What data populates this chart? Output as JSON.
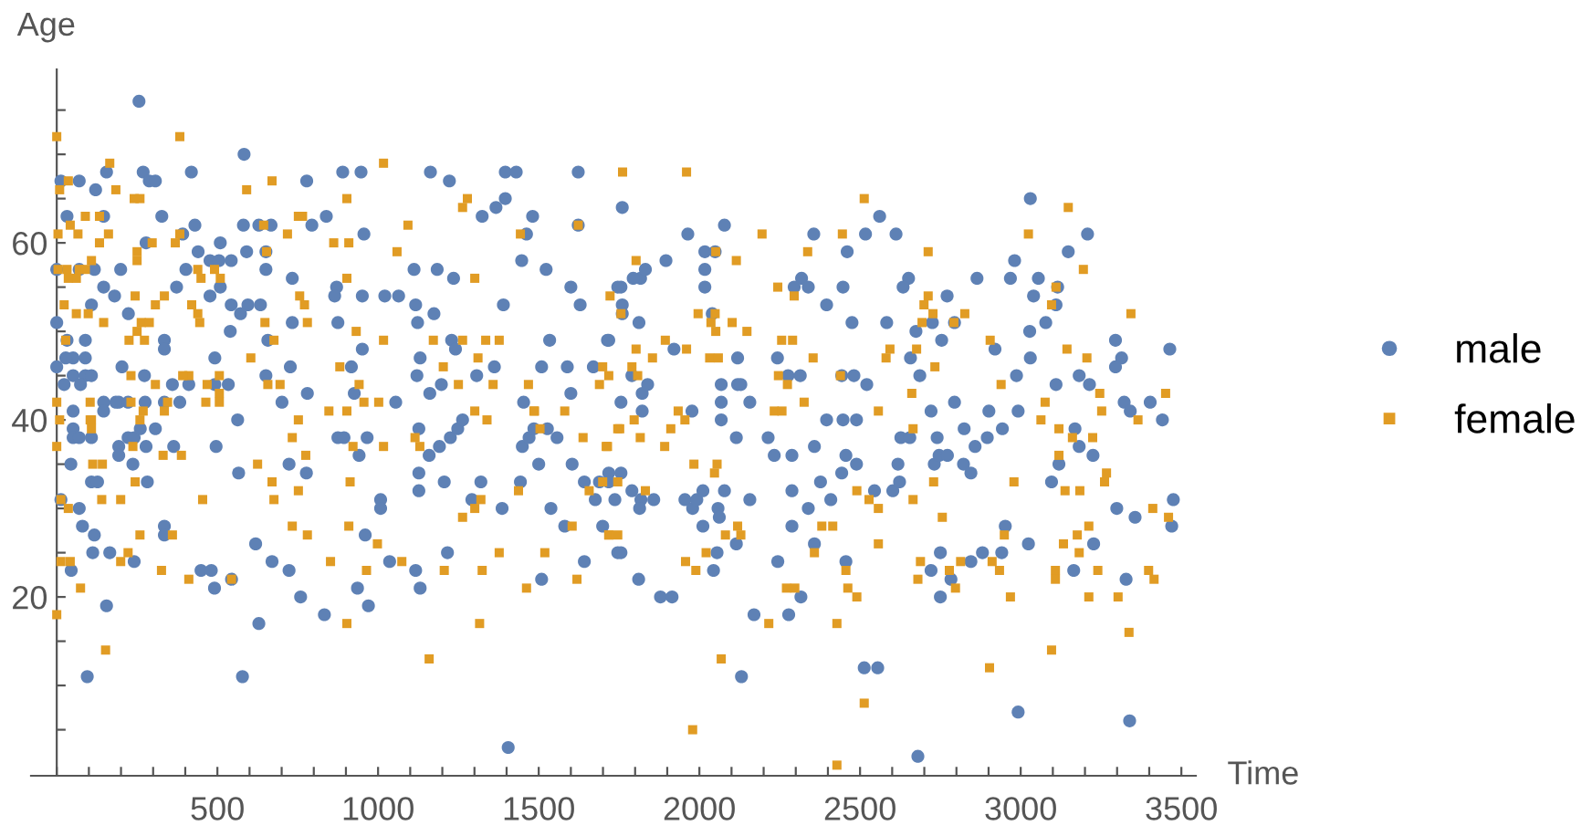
{
  "chart_data": {
    "type": "scatter",
    "xlabel": "Time",
    "ylabel": "Age",
    "legend": "right",
    "grid": false,
    "xlim": [
      -80,
      3545
    ],
    "ylim": [
      -0.2,
      79.6
    ],
    "xticks": [
      {
        "value": 0,
        "label": null
      },
      {
        "value": 100,
        "label": null
      },
      {
        "value": 200,
        "label": null
      },
      {
        "value": 300,
        "label": null
      },
      {
        "value": 400,
        "label": null
      },
      500,
      {
        "value": 600,
        "label": null
      },
      {
        "value": 700,
        "label": null
      },
      {
        "value": 800,
        "label": null
      },
      {
        "value": 900,
        "label": null
      },
      1000,
      {
        "value": 1100,
        "label": null
      },
      {
        "value": 1200,
        "label": null
      },
      {
        "value": 1300,
        "label": null
      },
      {
        "value": 1400,
        "label": null
      },
      1500,
      {
        "value": 1600,
        "label": null
      },
      {
        "value": 1700,
        "label": null
      },
      {
        "value": 1800,
        "label": null
      },
      {
        "value": 1900,
        "label": null
      },
      2000,
      {
        "value": 2100,
        "label": null
      },
      {
        "value": 2200,
        "label": null
      },
      {
        "value": 2300,
        "label": null
      },
      {
        "value": 2400,
        "label": null
      },
      2500,
      {
        "value": 2600,
        "label": null
      },
      {
        "value": 2700,
        "label": null
      },
      {
        "value": 2800,
        "label": null
      },
      {
        "value": 2900,
        "label": null
      },
      3000,
      {
        "value": 3100,
        "label": null
      },
      {
        "value": 3200,
        "label": null
      },
      {
        "value": 3300,
        "label": null
      },
      {
        "value": 3400,
        "label": null
      },
      3500
    ],
    "yticks": [
      {
        "value": 5,
        "label": null
      },
      {
        "value": 10,
        "label": null
      },
      {
        "value": 15,
        "label": null
      },
      20,
      {
        "value": 25,
        "label": null
      },
      {
        "value": 30,
        "label": null
      },
      {
        "value": 35,
        "label": null
      },
      40,
      {
        "value": 45,
        "label": null
      },
      {
        "value": 50,
        "label": null
      },
      {
        "value": 55,
        "label": null
      },
      60,
      {
        "value": 65,
        "label": null
      },
      {
        "value": 70,
        "label": null
      },
      {
        "value": 75,
        "label": null
      }
    ],
    "series": [
      {
        "name": "male",
        "color": "#5e81b5",
        "marker": "circle",
        "x": [
          256,
          583,
          269,
          155,
          13,
          70,
          121,
          288,
          307,
          419,
          778,
          890,
          947,
          1163,
          1222,
          1396,
          1430,
          1623,
          32,
          146,
          327,
          839,
          1324,
          1367,
          1396,
          1481,
          430,
          392,
          581,
          629,
          667,
          794,
          956,
          1462,
          1623,
          278,
          509,
          591,
          651,
          0,
          70,
          117,
          199,
          402,
          440,
          477,
          505,
          543,
          651,
          733,
          871,
          951,
          1112,
          1184,
          1235,
          1447,
          1523,
          1600,
          146,
          373,
          509,
          180,
          477,
          865,
          1021,
          1064,
          1117,
          1390,
          1629,
          543,
          595,
          634,
          572,
          0,
          108,
          223,
          1123,
          1174,
          733,
          875,
          540,
          89,
          32,
          335,
          335,
          657,
          951,
          1229,
          1241,
          1534,
          1714,
          51,
          28,
          89,
          0,
          203,
          273,
          492,
          651,
          727,
          917,
          1131,
          1362,
          1509,
          1589,
          1670,
          51,
          89,
          108,
          23,
          74,
          360,
          411,
          492,
          534,
          780,
          926,
          1121,
          1161,
          1197,
          1307,
          1600,
          146,
          193,
          275,
          383,
          335,
          701,
          1055,
          1453,
          51,
          51,
          146,
          184,
          222,
          51,
          70,
          108,
          222,
          241,
          260,
          307,
          193,
          193,
          278,
          364,
          496,
          44,
          237,
          563,
          566,
          108,
          127,
          282,
          941,
          875,
          894,
          966,
          723,
          777,
          1127,
          1127,
          1127,
          1159,
          1191,
          1225,
          1248,
          1206,
          1292,
          1320,
          1263,
          1443,
          1500,
          1449,
          1470,
          1485,
          1527,
          1557,
          1604,
          1642,
          1676,
          1689,
          1737,
          13,
          70,
          80,
          1008,
          1008,
          1386,
          1538,
          1581,
          1699,
          335,
          335,
          117,
          112,
          619,
          723,
          449,
          481,
          165,
          45,
          241,
          1036,
          960,
          1117,
          1216,
          670,
          759,
          544,
          491,
          936,
          1131,
          1509,
          1642,
          155,
          833,
          970,
          629,
          95,
          578,
          1405,
          1746,
          1760,
          1964,
          2078,
          2561,
          3030,
          3208,
          3148,
          2356,
          2517,
          2612,
          2460,
          1896,
          2017,
          2017,
          2017,
          2049,
          2981,
          1817,
          1794,
          1832,
          1756,
          1746,
          2318,
          2295,
          2339,
          2447,
          2651,
          2634,
          2864,
          2968,
          3055,
          3040,
          3115,
          3110,
          2771,
          1760,
          1760,
          2396,
          1718,
          1812,
          2040,
          2475,
          2583,
          2725,
          2794,
          2674,
          2754,
          3078,
          3028,
          3295,
          3314,
          3295,
          3464,
          2920,
          1921,
          2119,
          2243,
          3030,
          2657,
          1790,
          2276,
          2314,
          2443,
          2481,
          2686,
          2987,
          3182,
          1822,
          1839,
          2068,
          2119,
          2129,
          2521,
          3110,
          3214,
          1756,
          1822,
          1977,
          2068,
          2157,
          2721,
          2794,
          2901,
          2992,
          3322,
          3341,
          3403,
          3441,
          2068,
          2115,
          2214,
          2233,
          2288,
          2358,
          2396,
          2447,
          2489,
          2456,
          2443,
          2489,
          2618,
          2627,
          2655,
          2740,
          2731,
          2746,
          2772,
          2824,
          2858,
          2896,
          2943,
          2822,
          2845,
          3096,
          3119,
          3169,
          3182,
          3225,
          1718,
          1756,
          1718,
          1790,
          1818,
          1858,
          1814,
          1955,
          1979,
          1992,
          2011,
          2078,
          2058,
          2062,
          2157,
          2288,
          2288,
          2339,
          2377,
          2409,
          2545,
          2602,
          2623,
          3475,
          3470,
          3356,
          3299,
          2952,
          3024,
          2941,
          2881,
          2750,
          2721,
          2845,
          2783,
          2750,
          3227,
          3165,
          3328,
          1756,
          1811,
          2055,
          2044,
          2115,
          2011,
          2244,
          2358,
          1879,
          1915,
          2316,
          2170,
          2278,
          2456,
          2513,
          2555,
          2131,
          2992,
          3339,
          2680
        ],
        "values": [
          76,
          70,
          68,
          68,
          67,
          67,
          66,
          67,
          67,
          68,
          67,
          68,
          68,
          68,
          67,
          68,
          68,
          68,
          63,
          63,
          63,
          63,
          63,
          64,
          65,
          63,
          62,
          61,
          62,
          62,
          62,
          62,
          61,
          61,
          62,
          60,
          60,
          59,
          59,
          57,
          57,
          57,
          57,
          57,
          59,
          58,
          58,
          58,
          57,
          56,
          55,
          54,
          57,
          57,
          56,
          58,
          57,
          55,
          55,
          55,
          55,
          54,
          54,
          54,
          54,
          54,
          53,
          53,
          53,
          53,
          53,
          53,
          52,
          51,
          53,
          52,
          51,
          52,
          51,
          51,
          50,
          49,
          49,
          49,
          48,
          49,
          48,
          49,
          48,
          49,
          49,
          47,
          47,
          47,
          46,
          46,
          45,
          47,
          45,
          46,
          46,
          47,
          46,
          46,
          46,
          46,
          45,
          45,
          45,
          44,
          44,
          44,
          44,
          44,
          44,
          43,
          43,
          45,
          43,
          44,
          45,
          43,
          42,
          42,
          42,
          42,
          42,
          42,
          42,
          42,
          41,
          39,
          41,
          42,
          42,
          38,
          38,
          38,
          38,
          38,
          39,
          39,
          37,
          36,
          37,
          37,
          37,
          35,
          35,
          40,
          34,
          33,
          33,
          33,
          36,
          38,
          38,
          38,
          35,
          34,
          39,
          34,
          32,
          36,
          37,
          38,
          39,
          33,
          31,
          33,
          40,
          33,
          35,
          37,
          38,
          39,
          39,
          38,
          35,
          33,
          31,
          33,
          31,
          31,
          30,
          28,
          31,
          30,
          30,
          30,
          28,
          28,
          28,
          27,
          27,
          25,
          26,
          23,
          23,
          23,
          25,
          23,
          24,
          24,
          27,
          23,
          25,
          24,
          20,
          22,
          21,
          21,
          21,
          22,
          24,
          19,
          18,
          19,
          17,
          11,
          11,
          3,
          25,
          64,
          61,
          62,
          63,
          65,
          61,
          59,
          61,
          61,
          61,
          59,
          58,
          59,
          57,
          55,
          59,
          58,
          56,
          56,
          57,
          55,
          55,
          56,
          55,
          55,
          55,
          56,
          55,
          56,
          56,
          56,
          54,
          55,
          53,
          54,
          53,
          52,
          53,
          49,
          51,
          52,
          51,
          51,
          51,
          51,
          50,
          49,
          51,
          50,
          49,
          47,
          46,
          48,
          48,
          48,
          47,
          47,
          47,
          47,
          45,
          45,
          45,
          45,
          45,
          45,
          45,
          45,
          43,
          44,
          44,
          44,
          44,
          44,
          44,
          44,
          42,
          41,
          41,
          42,
          42,
          41,
          42,
          41,
          41,
          42,
          41,
          42,
          40,
          40,
          38,
          38,
          36,
          36,
          37,
          40,
          40,
          40,
          36,
          34,
          35,
          35,
          38,
          38,
          38,
          35,
          36,
          36,
          39,
          37,
          38,
          39,
          35,
          34,
          33,
          35,
          39,
          37,
          36,
          34,
          34,
          33,
          32,
          31,
          31,
          30,
          31,
          30,
          31,
          32,
          32,
          30,
          29,
          31,
          32,
          28,
          30,
          33,
          31,
          32,
          32,
          33,
          31,
          28,
          29,
          30,
          28,
          26,
          25,
          25,
          25,
          23,
          24,
          22,
          20,
          26,
          23,
          22,
          25,
          22,
          25,
          23,
          26,
          28,
          24,
          26,
          20,
          20,
          20,
          18,
          18,
          24,
          12,
          12,
          11,
          7,
          6,
          2
        ]
      },
      {
        "name": "female",
        "color": "#e19c24",
        "marker": "square",
        "x": [
          0,
          383,
          165,
          1017,
          36,
          9,
          184,
          670,
          591,
          903,
          1278,
          1263,
          259,
          241,
          89,
          133,
          752,
          765,
          42,
          66,
          161,
          4,
          644,
          1093,
          383,
          718,
          1443,
          1623,
          133,
          297,
          369,
          862,
          909,
          250,
          250,
          108,
          653,
          1059,
          4,
          32,
          61,
          36,
          70,
          89,
          439,
          491,
          449,
          509,
          903,
          1301,
          756,
          244,
          335,
          23,
          307,
          420,
          771,
          61,
          98,
          439,
          146,
          263,
          288,
          445,
          648,
          780,
          250,
          932,
          28,
          273,
          225,
          676,
          1017,
          1172,
          1335,
          1377,
          1263,
          604,
          411,
          392,
          506,
          881,
          941,
          1203,
          1311,
          657,
          695,
          307,
          231,
          0,
          104,
          345,
          231,
          468,
          506,
          464,
          956,
          1002,
          1358,
          1250,
          1468,
          847,
          903,
          1301,
          1487,
          1581,
          1689,
          108,
          259,
          335,
          752,
          1339,
          9,
          0,
          13,
          36,
          42,
          13,
          0,
          104,
          108,
          112,
          142,
          140,
          199,
          74,
          152,
          199,
          222,
          237,
          244,
          259,
          269,
          331,
          326,
          360,
          388,
          411,
          454,
          506,
          544,
          625,
          670,
          676,
          733,
          752,
          775,
          780,
          733,
          852,
          903,
          909,
          913,
          922,
          964,
          1017,
          1074,
          998,
          1130,
          1115,
          1159,
          1206,
          1263,
          1301,
          1320,
          1324,
          1316,
          1377,
          1437,
          1462,
          1485,
          1504,
          1519,
          1604,
          1619,
          1638,
          1657,
          1699,
          1714,
          1718,
          1746,
          1746,
          1746,
          1761,
          1960,
          2513,
          3148,
          3024,
          2195,
          2445,
          2051,
          2712,
          2115,
          1803,
          2337,
          3195,
          3110,
          1722,
          1756,
          2295,
          2244,
          2712,
          2699,
          2727,
          2693,
          3096,
          3343,
          2826,
          1996,
          2049,
          2036,
          2102,
          2051,
          2148,
          2792,
          1894,
          2256,
          2290,
          2905,
          1803,
          1960,
          2593,
          2676,
          3144,
          1854,
          2032,
          2059,
          2354,
          2581,
          3206,
          1699,
          1790,
          2733,
          1718,
          1808,
          2246,
          2439,
          2274,
          2939,
          2661,
          3246,
          3451,
          2326,
          3076,
          1934,
          2233,
          2257,
          2557,
          3252,
          1955,
          3063,
          3365,
          1752,
          1797,
          1816,
          1892,
          1911,
          1710,
          1718,
          1832,
          1983,
          2047,
          2055,
          1957,
          1989,
          2021,
          2081,
          2119,
          2129,
          2216,
          2068,
          1979,
          2271,
          2297,
          2358,
          2381,
          2415,
          2428,
          2456,
          2462,
          2490,
          2490,
          2528,
          2557,
          2557,
          2513,
          2428,
          2665,
          2665,
          2688,
          2680,
          2729,
          2756,
          2778,
          2797,
          2813,
          2911,
          2934,
          2949,
          2968,
          2979,
          2903,
          3119,
          3119,
          3138,
          3161,
          3184,
          3133,
          3176,
          3182,
          3108,
          3108,
          3096,
          3224,
          3267,
          3261,
          3212,
          3212,
          3240,
          3303,
          3337,
          3398,
          3415,
          3411,
          3460
        ],
        "values": [
          72,
          72,
          69,
          69,
          67,
          66,
          66,
          67,
          66,
          65,
          65,
          64,
          65,
          65,
          63,
          63,
          63,
          63,
          62,
          61,
          61,
          61,
          62,
          62,
          61,
          61,
          61,
          62,
          60,
          60,
          60,
          60,
          60,
          59,
          58,
          58,
          59,
          59,
          57,
          57,
          56,
          56,
          57,
          57,
          57,
          57,
          56,
          56,
          56,
          56,
          54,
          54,
          54,
          53,
          53,
          53,
          53,
          52,
          52,
          52,
          51,
          51,
          51,
          51,
          51,
          51,
          50,
          50,
          49,
          49,
          49,
          49,
          49,
          49,
          49,
          49,
          49,
          47,
          45,
          45,
          45,
          46,
          44,
          46,
          47,
          44,
          44,
          44,
          45,
          42,
          42,
          42,
          42,
          44,
          43,
          42,
          42,
          42,
          44,
          44,
          44,
          41,
          41,
          41,
          41,
          41,
          44,
          40,
          40,
          41,
          40,
          40,
          40,
          37,
          31,
          30,
          24,
          24,
          18,
          40,
          39,
          35,
          35,
          31,
          31,
          21,
          14,
          24,
          25,
          37,
          33,
          27,
          41,
          36,
          23,
          27,
          36,
          22,
          31,
          42,
          22,
          35,
          33,
          31,
          38,
          32,
          36,
          27,
          28,
          24,
          17,
          28,
          33,
          37,
          23,
          37,
          24,
          26,
          37,
          38,
          13,
          23,
          29,
          30,
          31,
          23,
          17,
          25,
          32,
          21,
          41,
          39,
          25,
          28,
          22,
          38,
          32,
          33,
          37,
          27,
          27,
          39,
          33,
          68,
          68,
          65,
          64,
          61,
          61,
          61,
          59,
          59,
          58,
          58,
          59,
          57,
          55,
          54,
          52,
          54,
          55,
          54,
          53,
          52,
          51,
          53,
          52,
          52,
          52,
          52,
          51,
          51,
          50,
          50,
          51,
          49,
          49,
          49,
          49,
          48,
          48,
          48,
          48,
          48,
          47,
          47,
          47,
          47,
          47,
          47,
          46,
          46,
          46,
          45,
          45,
          45,
          45,
          44,
          44,
          43,
          43,
          43,
          42,
          42,
          41,
          41,
          41,
          41,
          41,
          40,
          40,
          40,
          39,
          40,
          38,
          37,
          39,
          37,
          27,
          32,
          35,
          34,
          35,
          24,
          23,
          25,
          27,
          28,
          27,
          17,
          13,
          5,
          21,
          21,
          25,
          28,
          28,
          17,
          23,
          21,
          20,
          32,
          31,
          30,
          26,
          8,
          1,
          39,
          31,
          24,
          22,
          33,
          29,
          23,
          21,
          24,
          24,
          23,
          27,
          20,
          33,
          12,
          39,
          36,
          32,
          38,
          32,
          26,
          27,
          25,
          23,
          22,
          14,
          38,
          34,
          33,
          28,
          20,
          23,
          20,
          16,
          23,
          22,
          30,
          29
        ]
      }
    ]
  }
}
